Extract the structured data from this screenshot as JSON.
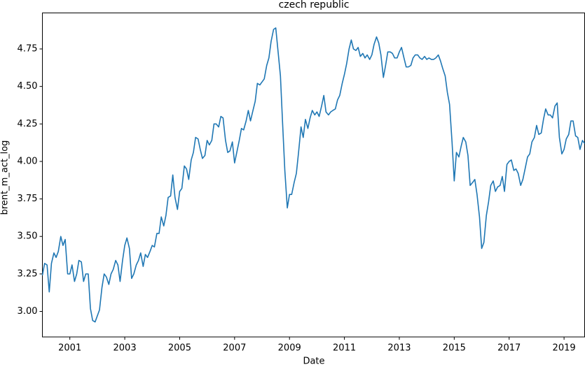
{
  "chart_data": {
    "type": "line",
    "title": "czech republic",
    "x_label": "Date",
    "y_label": "brent_m_act_log",
    "x": [
      2000,
      2000.08,
      2000.17,
      2000.25,
      2000.33,
      2000.42,
      2000.5,
      2000.58,
      2000.67,
      2000.75,
      2000.83,
      2000.92,
      2001,
      2001.08,
      2001.17,
      2001.25,
      2001.33,
      2001.42,
      2001.5,
      2001.58,
      2001.67,
      2001.75,
      2001.83,
      2001.92,
      2002,
      2002.08,
      2002.17,
      2002.25,
      2002.33,
      2002.42,
      2002.5,
      2002.58,
      2002.67,
      2002.75,
      2002.83,
      2002.92,
      2003,
      2003.08,
      2003.17,
      2003.25,
      2003.33,
      2003.42,
      2003.5,
      2003.58,
      2003.67,
      2003.75,
      2003.83,
      2003.92,
      2004,
      2004.08,
      2004.17,
      2004.25,
      2004.33,
      2004.42,
      2004.5,
      2004.58,
      2004.67,
      2004.75,
      2004.83,
      2004.92,
      2005,
      2005.08,
      2005.17,
      2005.25,
      2005.33,
      2005.42,
      2005.5,
      2005.58,
      2005.67,
      2005.75,
      2005.83,
      2005.92,
      2006,
      2006.08,
      2006.17,
      2006.25,
      2006.33,
      2006.42,
      2006.5,
      2006.58,
      2006.67,
      2006.75,
      2006.83,
      2006.92,
      2007,
      2007.08,
      2007.17,
      2007.25,
      2007.33,
      2007.42,
      2007.5,
      2007.58,
      2007.67,
      2007.75,
      2007.83,
      2007.92,
      2008,
      2008.08,
      2008.17,
      2008.25,
      2008.33,
      2008.42,
      2008.5,
      2008.58,
      2008.67,
      2008.75,
      2008.83,
      2008.92,
      2009,
      2009.08,
      2009.17,
      2009.25,
      2009.33,
      2009.42,
      2009.5,
      2009.58,
      2009.67,
      2009.75,
      2009.83,
      2009.92,
      2010,
      2010.08,
      2010.17,
      2010.25,
      2010.33,
      2010.42,
      2010.5,
      2010.58,
      2010.67,
      2010.75,
      2010.83,
      2010.92,
      2011,
      2011.08,
      2011.17,
      2011.25,
      2011.33,
      2011.42,
      2011.5,
      2011.58,
      2011.67,
      2011.75,
      2011.83,
      2011.92,
      2012,
      2012.08,
      2012.17,
      2012.25,
      2012.33,
      2012.42,
      2012.5,
      2012.58,
      2012.67,
      2012.75,
      2012.83,
      2012.92,
      2013,
      2013.08,
      2013.17,
      2013.25,
      2013.33,
      2013.42,
      2013.5,
      2013.58,
      2013.67,
      2013.75,
      2013.83,
      2013.92,
      2014,
      2014.08,
      2014.17,
      2014.25,
      2014.33,
      2014.42,
      2014.5,
      2014.58,
      2014.67,
      2014.75,
      2014.83,
      2014.92,
      2015,
      2015.08,
      2015.17,
      2015.25,
      2015.33,
      2015.42,
      2015.5,
      2015.58,
      2015.67,
      2015.75,
      2015.83,
      2015.92,
      2016,
      2016.08,
      2016.17,
      2016.25,
      2016.33,
      2016.42,
      2016.5,
      2016.58,
      2016.67,
      2016.75,
      2016.83,
      2016.92,
      2017,
      2017.08,
      2017.17,
      2017.25,
      2017.33,
      2017.42,
      2017.5,
      2017.58,
      2017.67,
      2017.75,
      2017.83,
      2017.92,
      2018,
      2018.08,
      2018.17,
      2018.25,
      2018.33,
      2018.42,
      2018.5,
      2018.58,
      2018.67,
      2018.75,
      2018.83,
      2018.92,
      2019,
      2019.08,
      2019.17,
      2019.25,
      2019.33,
      2019.42,
      2019.5,
      2019.58,
      2019.67,
      2019.75
    ],
    "series": [
      {
        "name": "brent_m_act_log",
        "color": "#1f77b4",
        "values": [
          3.24,
          3.32,
          3.31,
          3.13,
          3.32,
          3.39,
          3.36,
          3.4,
          3.5,
          3.44,
          3.48,
          3.25,
          3.25,
          3.31,
          3.2,
          3.25,
          3.34,
          3.33,
          3.2,
          3.25,
          3.25,
          3.02,
          2.94,
          2.93,
          2.97,
          3.01,
          3.16,
          3.25,
          3.23,
          3.18,
          3.25,
          3.28,
          3.34,
          3.31,
          3.2,
          3.34,
          3.44,
          3.49,
          3.42,
          3.22,
          3.25,
          3.31,
          3.34,
          3.39,
          3.3,
          3.38,
          3.36,
          3.4,
          3.44,
          3.43,
          3.52,
          3.52,
          3.63,
          3.57,
          3.64,
          3.76,
          3.77,
          3.91,
          3.76,
          3.68,
          3.8,
          3.82,
          3.97,
          3.95,
          3.88,
          4.01,
          4.06,
          4.16,
          4.15,
          4.08,
          4.02,
          4.04,
          4.14,
          4.11,
          4.14,
          4.25,
          4.25,
          4.23,
          4.3,
          4.29,
          4.14,
          4.06,
          4.07,
          4.13,
          3.99,
          4.06,
          4.14,
          4.22,
          4.21,
          4.27,
          4.34,
          4.27,
          4.34,
          4.4,
          4.52,
          4.51,
          4.53,
          4.55,
          4.64,
          4.69,
          4.8,
          4.88,
          4.89,
          4.74,
          4.57,
          4.25,
          3.94,
          3.69,
          3.78,
          3.78,
          3.86,
          3.92,
          4.06,
          4.23,
          4.16,
          4.28,
          4.22,
          4.29,
          4.34,
          4.31,
          4.33,
          4.3,
          4.37,
          4.44,
          4.33,
          4.31,
          4.33,
          4.34,
          4.35,
          4.41,
          4.44,
          4.52,
          4.58,
          4.65,
          4.75,
          4.81,
          4.75,
          4.74,
          4.76,
          4.7,
          4.72,
          4.69,
          4.71,
          4.68,
          4.71,
          4.78,
          4.83,
          4.79,
          4.71,
          4.56,
          4.64,
          4.73,
          4.73,
          4.72,
          4.69,
          4.69,
          4.73,
          4.76,
          4.69,
          4.63,
          4.63,
          4.64,
          4.69,
          4.71,
          4.71,
          4.69,
          4.68,
          4.7,
          4.68,
          4.69,
          4.68,
          4.68,
          4.69,
          4.71,
          4.67,
          4.62,
          4.57,
          4.46,
          4.38,
          4.13,
          3.87,
          4.06,
          4.03,
          4.1,
          4.16,
          4.13,
          4.04,
          3.84,
          3.86,
          3.88,
          3.78,
          3.63,
          3.42,
          3.46,
          3.64,
          3.73,
          3.84,
          3.87,
          3.8,
          3.83,
          3.84,
          3.9,
          3.8,
          3.98,
          4.0,
          4.01,
          3.94,
          3.95,
          3.92,
          3.84,
          3.88,
          3.95,
          4.03,
          4.05,
          4.13,
          4.16,
          4.24,
          4.18,
          4.19,
          4.28,
          4.35,
          4.31,
          4.31,
          4.29,
          4.37,
          4.39,
          4.16,
          4.05,
          4.08,
          4.15,
          4.18,
          4.27,
          4.27,
          4.17,
          4.16,
          4.08,
          4.14,
          4.12
        ]
      }
    ],
    "xlim": [
      2000,
      2019.75
    ],
    "xticks": [
      2001,
      2003,
      2005,
      2007,
      2009,
      2011,
      2013,
      2015,
      2017,
      2019
    ],
    "ylim": [
      2.83,
      4.99
    ],
    "yticks": [
      {
        "value": 3,
        "label": "3.00"
      },
      {
        "value": 3.25,
        "label": "3.25"
      },
      {
        "value": 3.5,
        "label": "3.50"
      },
      {
        "value": 3.75,
        "label": "3.75"
      },
      {
        "value": 4,
        "label": "4.00"
      },
      {
        "value": 4.25,
        "label": "4.25"
      },
      {
        "value": 4.5,
        "label": "4.50"
      },
      {
        "value": 4.75,
        "label": "4.75"
      }
    ],
    "grid": false
  }
}
